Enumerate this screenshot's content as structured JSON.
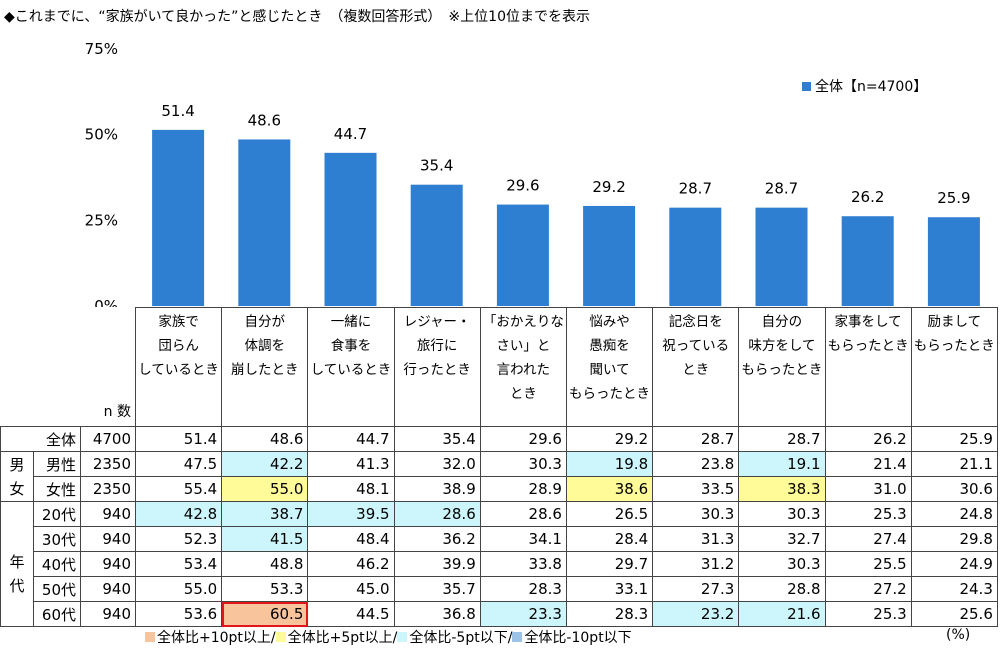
{
  "title": "◆これまでに、“家族がいて良かった”と感じたとき　（複数回答形式）　※上位10位までを表示",
  "chart_data": {
    "type": "bar",
    "categories": [
      "家族で\n団らん\nしているとき",
      "自分が\n体調を\n崩したとき",
      "一緒に\n食事を\nしているとき",
      "レジャー・\n旅行に\n行ったとき",
      "「おかえりな\nさい」と\n言われた\nとき",
      "悩みや\n愚痴を\n聞いて\nもらったとき",
      "記念日を\n祝っている\nとき",
      "自分の\n味方をして\nもらったとき",
      "家事をして\nもらったとき",
      "励まして\nもらったとき"
    ],
    "series": [
      {
        "name": "全体【n=4700】",
        "values": [
          51.4,
          48.6,
          44.7,
          35.4,
          29.6,
          29.2,
          28.7,
          28.7,
          26.2,
          25.9
        ],
        "color": "#2e7fd2"
      }
    ],
    "ylim": [
      0,
      75
    ],
    "yticks": [
      "0%",
      "25%",
      "50%",
      "75%"
    ],
    "legend_position": "top-right",
    "grid": false
  },
  "table": {
    "n_header": "n 数",
    "rows": [
      {
        "group": "",
        "label": "全体",
        "n": "4700",
        "values": [
          "51.4",
          "48.6",
          "44.7",
          "35.4",
          "29.6",
          "29.2",
          "28.7",
          "28.7",
          "26.2",
          "25.9"
        ],
        "hl": [
          "",
          "",
          "",
          "",
          "",
          "",
          "",
          "",
          "",
          ""
        ]
      },
      {
        "group": "男女",
        "label": "男性",
        "n": "2350",
        "values": [
          "47.5",
          "42.2",
          "41.3",
          "32.0",
          "30.3",
          "19.8",
          "23.8",
          "19.1",
          "21.4",
          "21.1"
        ],
        "hl": [
          "",
          "lb",
          "",
          "",
          "",
          "lb",
          "",
          "lb",
          "",
          ""
        ]
      },
      {
        "group": "",
        "label": "女性",
        "n": "2350",
        "values": [
          "55.4",
          "55.0",
          "48.1",
          "38.9",
          "28.9",
          "38.6",
          "33.5",
          "38.3",
          "31.0",
          "30.6"
        ],
        "hl": [
          "",
          "y",
          "",
          "",
          "",
          "y",
          "",
          "y",
          "",
          ""
        ]
      },
      {
        "group": "年代",
        "label": "20代",
        "n": "940",
        "values": [
          "42.8",
          "38.7",
          "39.5",
          "28.6",
          "28.6",
          "26.5",
          "30.3",
          "30.3",
          "25.3",
          "24.8"
        ],
        "hl": [
          "lb",
          "lb",
          "lb",
          "lb",
          "",
          "",
          "",
          "",
          "",
          ""
        ]
      },
      {
        "group": "",
        "label": "30代",
        "n": "940",
        "values": [
          "52.3",
          "41.5",
          "48.4",
          "36.2",
          "34.1",
          "28.4",
          "31.3",
          "32.7",
          "27.4",
          "29.8"
        ],
        "hl": [
          "",
          "lb",
          "",
          "",
          "",
          "",
          "",
          "",
          "",
          ""
        ]
      },
      {
        "group": "",
        "label": "40代",
        "n": "940",
        "values": [
          "53.4",
          "48.8",
          "46.2",
          "39.9",
          "33.8",
          "29.7",
          "31.2",
          "30.3",
          "25.5",
          "24.9"
        ],
        "hl": [
          "",
          "",
          "",
          "",
          "",
          "",
          "",
          "",
          "",
          ""
        ]
      },
      {
        "group": "",
        "label": "50代",
        "n": "940",
        "values": [
          "55.0",
          "53.3",
          "45.0",
          "35.7",
          "28.3",
          "33.1",
          "27.3",
          "28.8",
          "27.2",
          "24.3"
        ],
        "hl": [
          "",
          "",
          "",
          "",
          "",
          "",
          "",
          "",
          "",
          ""
        ]
      },
      {
        "group": "",
        "label": "60代",
        "n": "940",
        "values": [
          "53.6",
          "60.5",
          "44.5",
          "36.8",
          "23.3",
          "28.3",
          "23.2",
          "21.6",
          "25.3",
          "25.6"
        ],
        "hl": [
          "",
          "o",
          "",
          "",
          "lb",
          "",
          "lb",
          "lb",
          "",
          ""
        ]
      }
    ]
  },
  "legend": [
    {
      "label": "全体比+10pt以上/",
      "color": "#f8c49c"
    },
    {
      "label": "全体比+5pt以上/",
      "color": "#fffb99"
    },
    {
      "label": "全体比-5pt以下/",
      "color": "#ccf6fb"
    },
    {
      "label": "全体比-10pt以下",
      "color": "#9cc3e6"
    }
  ],
  "unit": "(%)"
}
